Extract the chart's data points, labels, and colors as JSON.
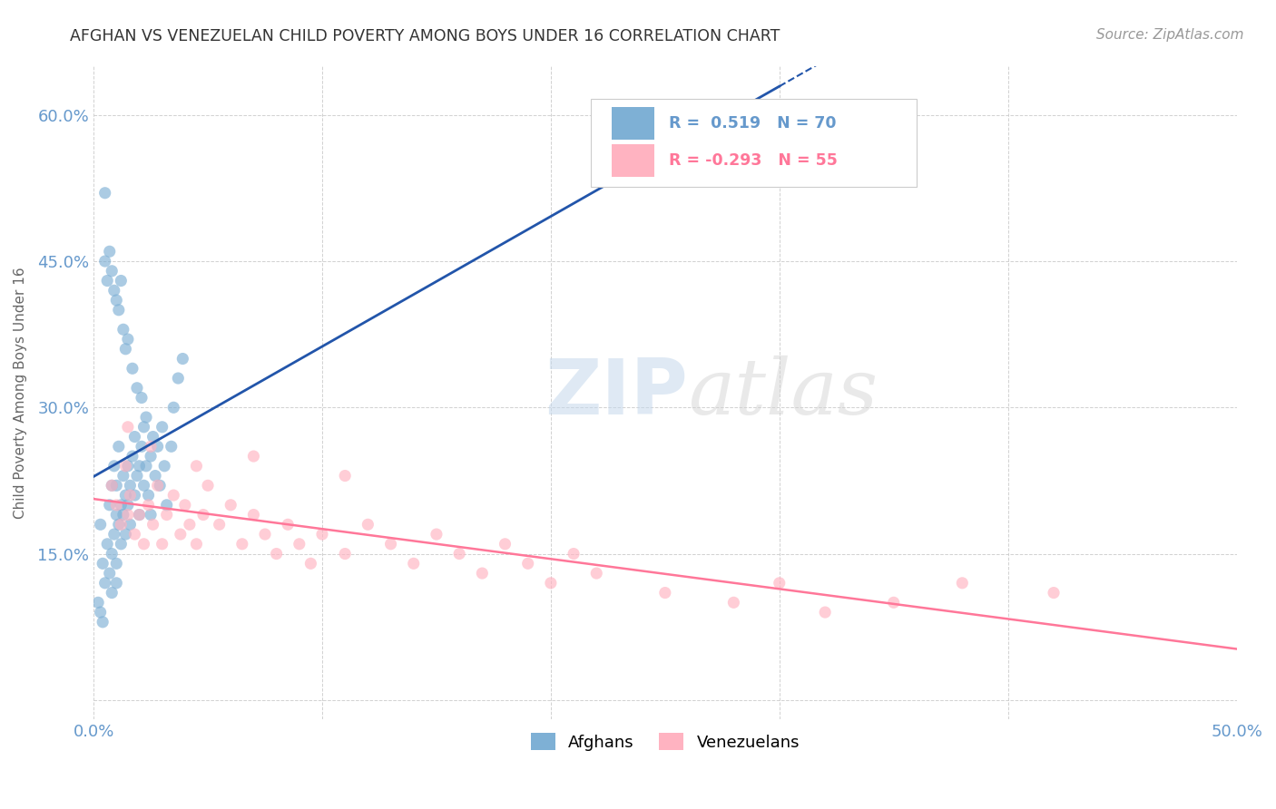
{
  "title": "AFGHAN VS VENEZUELAN CHILD POVERTY AMONG BOYS UNDER 16 CORRELATION CHART",
  "source": "Source: ZipAtlas.com",
  "ylabel": "Child Poverty Among Boys Under 16",
  "xlim": [
    0,
    0.5
  ],
  "ylim": [
    -0.02,
    0.65
  ],
  "yticks": [
    0.0,
    0.15,
    0.3,
    0.45,
    0.6
  ],
  "ytick_labels": [
    "",
    "15.0%",
    "30.0%",
    "45.0%",
    "60.0%"
  ],
  "xticks": [
    0.0,
    0.1,
    0.2,
    0.3,
    0.4,
    0.5
  ],
  "xtick_labels": [
    "0.0%",
    "",
    "",
    "",
    "",
    "50.0%"
  ],
  "legend_bottom_blue": "Afghans",
  "legend_bottom_pink": "Venezuelans",
  "blue_color": "#7EB0D5",
  "pink_color": "#FFB3C1",
  "blue_line_color": "#2255AA",
  "pink_line_color": "#FF7799",
  "grid_color": "#CCCCCC",
  "background_color": "#FFFFFF",
  "title_color": "#333333",
  "tick_color": "#6699CC",
  "afghans_x": [
    0.003,
    0.004,
    0.005,
    0.005,
    0.006,
    0.007,
    0.007,
    0.008,
    0.008,
    0.009,
    0.009,
    0.01,
    0.01,
    0.01,
    0.011,
    0.011,
    0.012,
    0.012,
    0.013,
    0.013,
    0.014,
    0.014,
    0.015,
    0.015,
    0.016,
    0.016,
    0.017,
    0.018,
    0.018,
    0.019,
    0.02,
    0.02,
    0.021,
    0.022,
    0.022,
    0.023,
    0.024,
    0.025,
    0.025,
    0.026,
    0.027,
    0.028,
    0.029,
    0.03,
    0.031,
    0.032,
    0.034,
    0.035,
    0.037,
    0.039,
    0.005,
    0.006,
    0.007,
    0.008,
    0.009,
    0.01,
    0.011,
    0.012,
    0.013,
    0.014,
    0.015,
    0.017,
    0.019,
    0.021,
    0.023,
    0.002,
    0.003,
    0.004,
    0.008,
    0.01
  ],
  "afghans_y": [
    0.18,
    0.14,
    0.12,
    0.52,
    0.16,
    0.13,
    0.2,
    0.15,
    0.22,
    0.17,
    0.24,
    0.19,
    0.14,
    0.22,
    0.26,
    0.18,
    0.2,
    0.16,
    0.23,
    0.19,
    0.21,
    0.17,
    0.24,
    0.2,
    0.22,
    0.18,
    0.25,
    0.21,
    0.27,
    0.23,
    0.24,
    0.19,
    0.26,
    0.22,
    0.28,
    0.24,
    0.21,
    0.25,
    0.19,
    0.27,
    0.23,
    0.26,
    0.22,
    0.28,
    0.24,
    0.2,
    0.26,
    0.3,
    0.33,
    0.35,
    0.45,
    0.43,
    0.46,
    0.44,
    0.42,
    0.41,
    0.4,
    0.43,
    0.38,
    0.36,
    0.37,
    0.34,
    0.32,
    0.31,
    0.29,
    0.1,
    0.09,
    0.08,
    0.11,
    0.12
  ],
  "venezuelans_x": [
    0.008,
    0.01,
    0.012,
    0.014,
    0.015,
    0.016,
    0.018,
    0.02,
    0.022,
    0.024,
    0.026,
    0.028,
    0.03,
    0.032,
    0.035,
    0.038,
    0.04,
    0.042,
    0.045,
    0.048,
    0.05,
    0.055,
    0.06,
    0.065,
    0.07,
    0.075,
    0.08,
    0.085,
    0.09,
    0.095,
    0.1,
    0.11,
    0.12,
    0.13,
    0.14,
    0.15,
    0.16,
    0.17,
    0.18,
    0.19,
    0.2,
    0.21,
    0.22,
    0.25,
    0.28,
    0.3,
    0.32,
    0.35,
    0.38,
    0.42,
    0.015,
    0.025,
    0.045,
    0.07,
    0.11
  ],
  "venezuelans_y": [
    0.22,
    0.2,
    0.18,
    0.24,
    0.19,
    0.21,
    0.17,
    0.19,
    0.16,
    0.2,
    0.18,
    0.22,
    0.16,
    0.19,
    0.21,
    0.17,
    0.2,
    0.18,
    0.16,
    0.19,
    0.22,
    0.18,
    0.2,
    0.16,
    0.19,
    0.17,
    0.15,
    0.18,
    0.16,
    0.14,
    0.17,
    0.15,
    0.18,
    0.16,
    0.14,
    0.17,
    0.15,
    0.13,
    0.16,
    0.14,
    0.12,
    0.15,
    0.13,
    0.11,
    0.1,
    0.12,
    0.09,
    0.1,
    0.12,
    0.11,
    0.28,
    0.26,
    0.24,
    0.25,
    0.23
  ]
}
